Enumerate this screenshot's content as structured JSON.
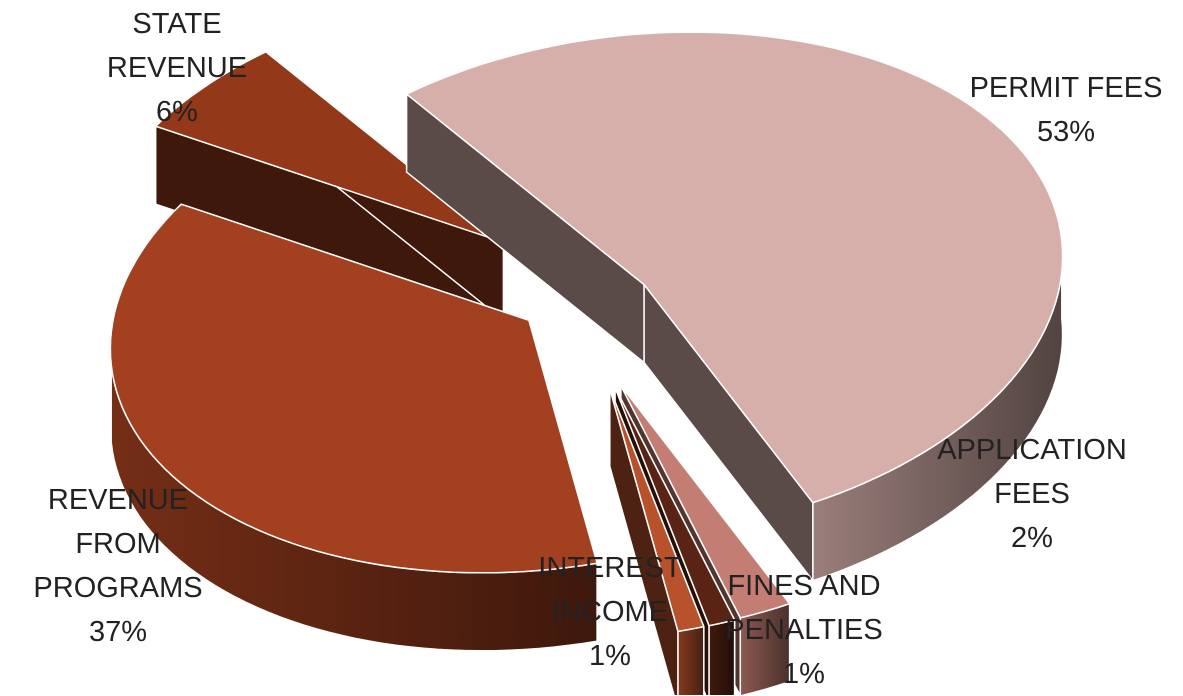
{
  "chart_data": {
    "type": "pie",
    "style": "3d-exploded",
    "title": "",
    "slices": [
      {
        "label_lines": [
          "PERMIT FEES"
        ],
        "percent": "53%",
        "value": 53,
        "color": "#D6AFAB"
      },
      {
        "label_lines": [
          "APPLICATION",
          "FEES"
        ],
        "percent": "2%",
        "value": 2,
        "color": "#C47D72"
      },
      {
        "label_lines": [
          "FINES AND",
          "PENALTIES"
        ],
        "percent": "1%",
        "value": 1,
        "color": "#5A2414"
      },
      {
        "label_lines": [
          "INTEREST",
          "INCOME"
        ],
        "percent": "1%",
        "value": 1,
        "color": "#B8522C"
      },
      {
        "label_lines": [
          "REVENUE",
          "FROM",
          "PROGRAMS"
        ],
        "percent": "37%",
        "value": 37,
        "color": "#A3401F"
      },
      {
        "label_lines": [
          "STATE",
          "REVENUE"
        ],
        "percent": "6%",
        "value": 6,
        "color": "#94381A"
      }
    ]
  }
}
